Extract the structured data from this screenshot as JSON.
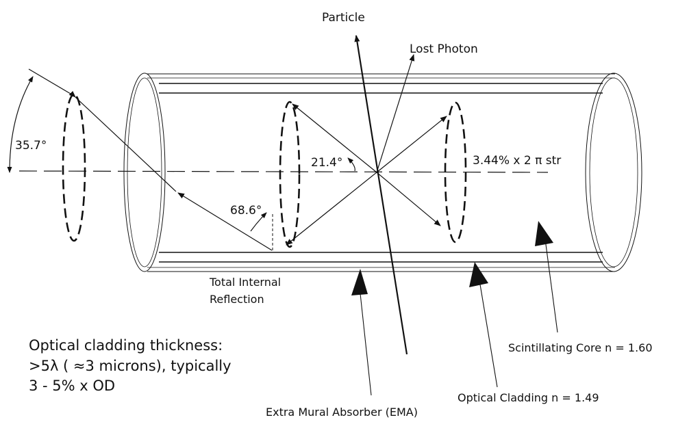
{
  "labels": {
    "particle": "Particle",
    "lost_photon": "Lost Photon",
    "angle_acceptance": "35.7°",
    "angle_emission": "21.4°",
    "angle_reflection": "68.6°",
    "solid_angle": "3.44% x 2  π str",
    "tir_line1": "Total Internal",
    "tir_line2": "Reflection",
    "ema": "Extra Mural Absorber (EMA)",
    "cladding": "Optical Cladding  n = 1.49",
    "core": "Scintillating Core  n = 1.60"
  },
  "note": {
    "line1": "Optical cladding thickness:",
    "line2": ">5λ ( ≈3 microns), typically",
    "line3": "3 - 5% x OD"
  }
}
